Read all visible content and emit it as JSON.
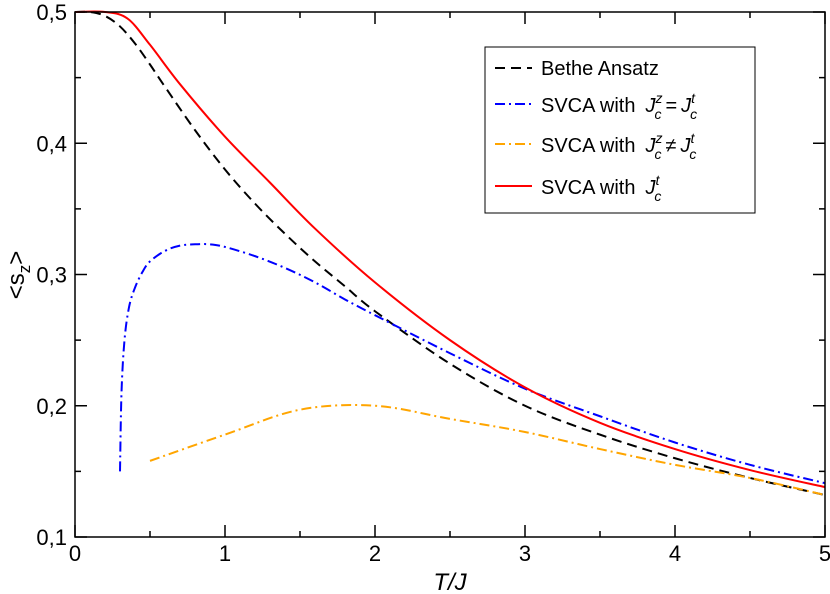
{
  "chart_data": {
    "type": "line",
    "xlabel": "T/J",
    "ylabel": "<s_z>",
    "xlim": [
      0,
      5
    ],
    "ylim": [
      0.1,
      0.5
    ],
    "xticks": [
      0,
      1,
      2,
      3,
      4,
      5
    ],
    "xtick_labels": [
      "0",
      "1",
      "2",
      "3",
      "4",
      "5"
    ],
    "yticks": [
      0.1,
      0.2,
      0.3,
      0.4,
      0.5
    ],
    "ytick_labels": [
      "0,1",
      "0,2",
      "0,3",
      "0,4",
      "0,5"
    ],
    "grid": false,
    "legend_position": "top-right",
    "series": [
      {
        "name": "Bethe Ansatz",
        "color": "#000000",
        "dash": "10,6",
        "x": [
          0,
          0.1,
          0.2,
          0.3,
          0.4,
          0.5,
          0.6,
          0.8,
          1.0,
          1.2,
          1.4,
          1.6,
          1.8,
          2.0,
          2.5,
          3.0,
          3.5,
          4.0,
          4.5,
          5.0
        ],
        "y": [
          0.5,
          0.5,
          0.497,
          0.489,
          0.476,
          0.46,
          0.443,
          0.41,
          0.38,
          0.354,
          0.331,
          0.31,
          0.291,
          0.272,
          0.232,
          0.2,
          0.178,
          0.16,
          0.145,
          0.132
        ]
      },
      {
        "name": "SVCA  with J_c^z = J_c^t",
        "color": "#0000ff",
        "dash": "10,4,2,4",
        "x": [
          0.3,
          0.31,
          0.33,
          0.36,
          0.4,
          0.45,
          0.5,
          0.6,
          0.7,
          0.8,
          0.9,
          1.0,
          1.2,
          1.4,
          1.6,
          1.8,
          2.0,
          2.5,
          3.0,
          3.5,
          4.0,
          4.5,
          5.0
        ],
        "y": [
          0.15,
          0.21,
          0.25,
          0.275,
          0.29,
          0.302,
          0.31,
          0.318,
          0.322,
          0.323,
          0.323,
          0.321,
          0.314,
          0.305,
          0.294,
          0.281,
          0.269,
          0.24,
          0.213,
          0.192,
          0.172,
          0.155,
          0.141
        ]
      },
      {
        "name": "SVCA  with J_c^z ≠ J_c^t",
        "color": "#ffa500",
        "dash": "10,4,2,4",
        "x": [
          0.5,
          1.0,
          1.5,
          2.0,
          2.5,
          3.0,
          3.5,
          4.0,
          4.5,
          5.0
        ],
        "y": [
          0.158,
          0.178,
          0.197,
          0.2,
          0.19,
          0.18,
          0.167,
          0.155,
          0.145,
          0.132
        ]
      },
      {
        "name": "SVCA  with J_c^t",
        "color": "#ff0000",
        "dash": "",
        "x": [
          0,
          0.2,
          0.35,
          0.5,
          0.7,
          1.0,
          1.3,
          1.6,
          2.0,
          2.5,
          3.0,
          3.5,
          4.0,
          4.5,
          5.0
        ],
        "y": [
          0.5,
          0.5,
          0.495,
          0.475,
          0.445,
          0.405,
          0.37,
          0.335,
          0.294,
          0.25,
          0.214,
          0.187,
          0.167,
          0.151,
          0.138
        ]
      }
    ]
  },
  "legend": {
    "entry1": "Bethe Ansatz",
    "entry2_prefix": "SVCA  with",
    "entry3_prefix": "SVCA  with",
    "entry4_prefix": "SVCA  with",
    "j_symbol": "J",
    "sub_c": "c",
    "sup_z": "z",
    "sup_t": "t",
    "eq": "=",
    "neq": "≠"
  },
  "ylabel_parts": {
    "open": "<s",
    "sub": "z",
    "close": ">"
  }
}
